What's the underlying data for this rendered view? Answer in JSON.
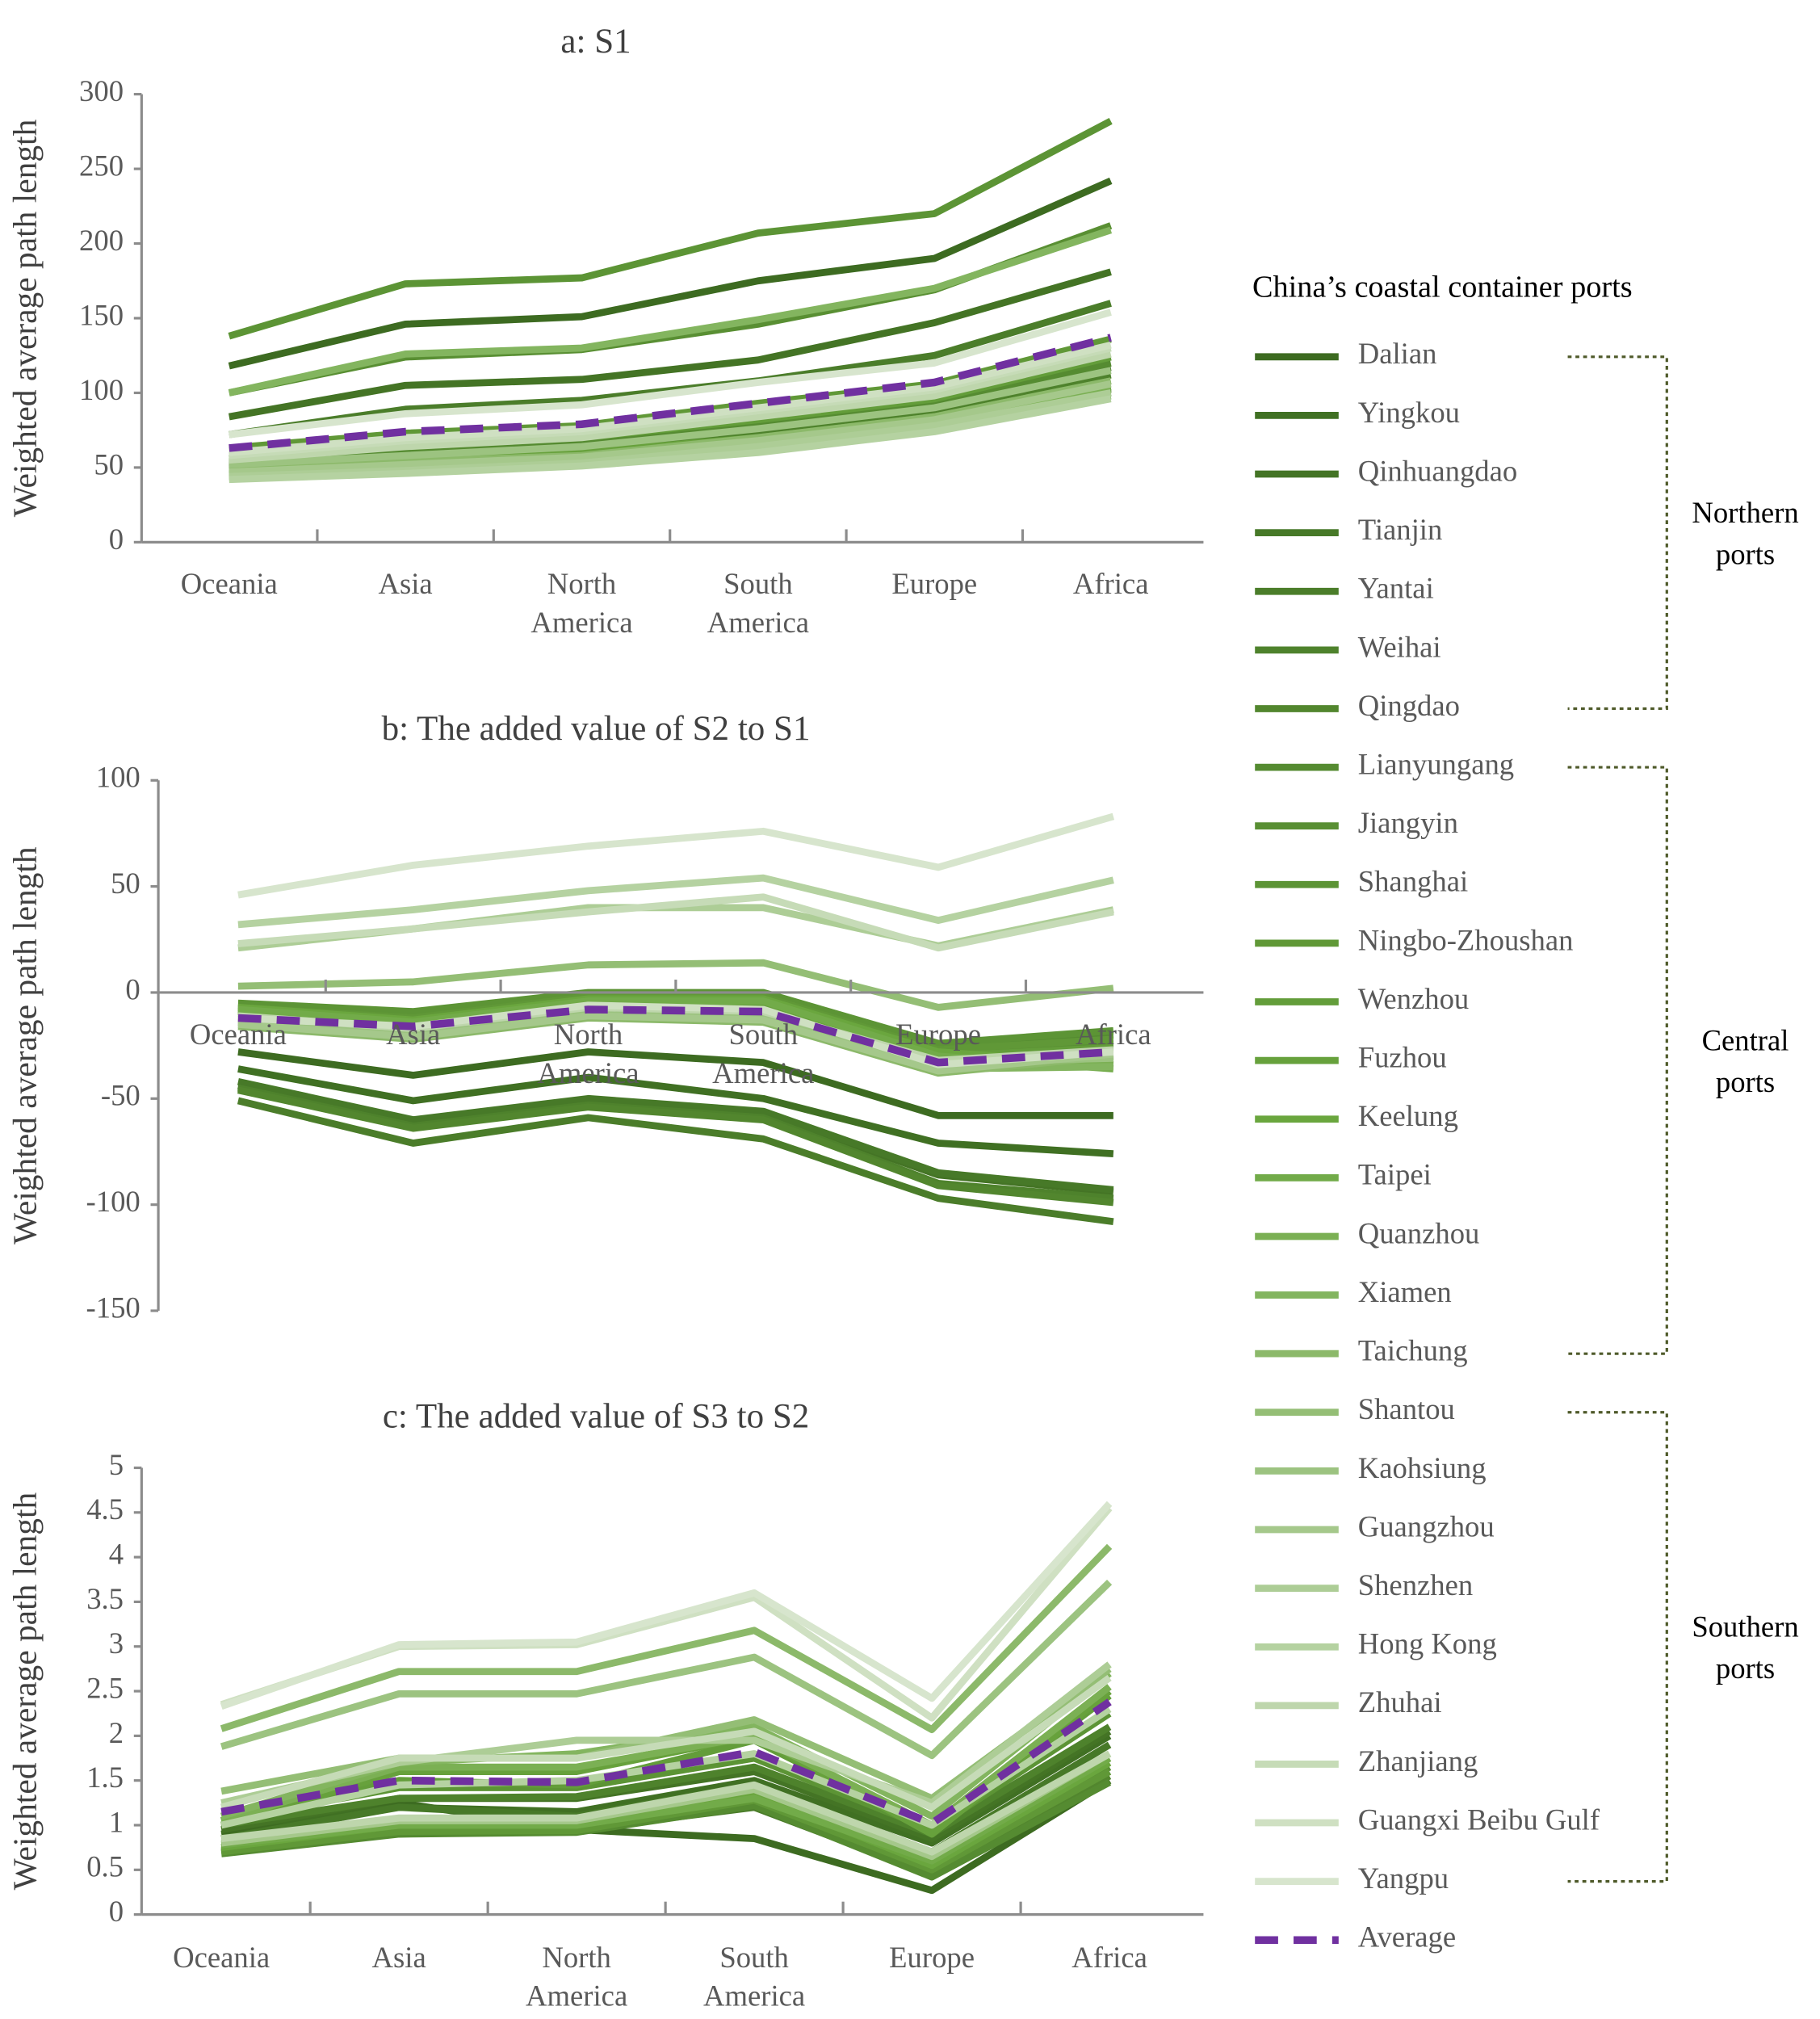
{
  "legend": {
    "title": "China’s coastal container ports",
    "groups": [
      {
        "label_lines": [
          "Northern",
          "ports"
        ],
        "from": 0,
        "to": 6
      },
      {
        "label_lines": [
          "Central",
          "ports"
        ],
        "from": 7,
        "to": 17
      },
      {
        "label_lines": [
          "Southern",
          "ports"
        ],
        "from": 18,
        "to": 26
      }
    ],
    "color_stops": [
      "#3d6b21",
      "#6aa63e",
      "#d7e5cd"
    ],
    "average_color": "#7030a0",
    "bracket_color": "#4f5a2a"
  },
  "chart_data": [
    {
      "type": "line",
      "title": "a: S1",
      "ylabel": "Weighted average path length",
      "xlabel": "",
      "categories": [
        "Oceania",
        "Asia",
        "North America",
        "South America",
        "Europe",
        "Africa"
      ],
      "category_lines": [
        [
          "Oceania"
        ],
        [
          "Asia"
        ],
        [
          "North",
          "America"
        ],
        [
          "South",
          "America"
        ],
        [
          "Europe"
        ],
        [
          "Africa"
        ]
      ],
      "ylim": [
        0,
        300
      ],
      "yticks": [
        0,
        50,
        100,
        150,
        200,
        250,
        300
      ],
      "grid": false,
      "series": [
        {
          "name": "Dalian",
          "values": [
            118,
            146,
            151,
            175,
            190,
            242
          ]
        },
        {
          "name": "Yingkou",
          "values": [
            52,
            60,
            66,
            78,
            92,
            117
          ]
        },
        {
          "name": "Qinhuangdao",
          "values": [
            84,
            105,
            109,
            122,
            147,
            181
          ]
        },
        {
          "name": "Tianjin",
          "values": [
            48,
            52,
            56,
            67,
            80,
            103
          ]
        },
        {
          "name": "Yantai",
          "values": [
            72,
            89,
            95,
            108,
            125,
            160
          ]
        },
        {
          "name": "Weihai",
          "values": [
            50,
            56,
            62,
            74,
            88,
            112
          ]
        },
        {
          "name": "Qingdao",
          "values": [
            46,
            50,
            55,
            66,
            78,
            100
          ]
        },
        {
          "name": "Lianyungang",
          "values": [
            54,
            62,
            68,
            80,
            94,
            120
          ]
        },
        {
          "name": "Jiangyin",
          "values": [
            100,
            124,
            129,
            146,
            169,
            212
          ]
        },
        {
          "name": "Shanghai",
          "values": [
            138,
            173,
            177,
            207,
            220,
            282
          ]
        },
        {
          "name": "Ningbo-Zhoushan",
          "values": [
            63,
            73,
            78,
            93,
            106,
            136
          ]
        },
        {
          "name": "Wenzhou",
          "values": [
            56,
            64,
            70,
            82,
            96,
            124
          ]
        },
        {
          "name": "Fuzhou",
          "values": [
            48,
            54,
            60,
            70,
            84,
            108
          ]
        },
        {
          "name": "Keelung",
          "values": [
            46,
            50,
            56,
            66,
            80,
            104
          ]
        },
        {
          "name": "Taipei",
          "values": [
            44,
            48,
            54,
            64,
            78,
            100
          ]
        },
        {
          "name": "Quanzhou",
          "values": [
            45,
            50,
            55,
            65,
            79,
            102
          ]
        },
        {
          "name": "Xiamen",
          "values": [
            100,
            126,
            130,
            149,
            170,
            209
          ]
        },
        {
          "name": "Taichung",
          "values": [
            48,
            54,
            58,
            70,
            84,
            108
          ]
        },
        {
          "name": "Shantou",
          "values": [
            44,
            47,
            52,
            62,
            76,
            98
          ]
        },
        {
          "name": "Kaohsiung",
          "values": [
            52,
            58,
            64,
            76,
            90,
            115
          ]
        },
        {
          "name": "Guangzhou",
          "values": [
            47,
            52,
            57,
            68,
            82,
            106
          ]
        },
        {
          "name": "Shenzhen",
          "values": [
            44,
            48,
            53,
            64,
            78,
            100
          ]
        },
        {
          "name": "Hong Kong",
          "values": [
            42,
            46,
            51,
            60,
            74,
            96
          ]
        },
        {
          "name": "Zhuhai",
          "values": [
            55,
            64,
            70,
            84,
            98,
            126
          ]
        },
        {
          "name": "Zhanjiang",
          "values": [
            58,
            68,
            74,
            88,
            102,
            130
          ]
        },
        {
          "name": "Guangxi Beibu Gulf",
          "values": [
            60,
            70,
            76,
            90,
            104,
            132
          ]
        },
        {
          "name": "Yangpu",
          "values": [
            72,
            86,
            92,
            107,
            120,
            154
          ]
        },
        {
          "name": "Average",
          "values": [
            63,
            74,
            79,
            93,
            107,
            137
          ]
        }
      ]
    },
    {
      "type": "line",
      "title": "b: The added value of S2 to S1",
      "ylabel": "Weighted average path length",
      "xlabel": "",
      "categories": [
        "Oceania",
        "Asia",
        "North America",
        "South America",
        "Europe",
        "Africa"
      ],
      "category_lines": [
        [
          "Oceania"
        ],
        [
          "Asia"
        ],
        [
          "North",
          "America"
        ],
        [
          "South",
          "America"
        ],
        [
          "Europe"
        ],
        [
          "Africa"
        ]
      ],
      "ylim": [
        -150,
        100
      ],
      "yticks": [
        -150,
        -100,
        -50,
        0,
        50,
        100
      ],
      "grid": false,
      "series": [
        {
          "name": "Dalian",
          "values": [
            -28,
            -39,
            -28,
            -33,
            -58,
            -58
          ]
        },
        {
          "name": "Yingkou",
          "values": [
            -36,
            -51,
            -40,
            -50,
            -71,
            -76
          ]
        },
        {
          "name": "Qinhuangdao",
          "values": [
            -44,
            -61,
            -51,
            -57,
            -86,
            -94
          ]
        },
        {
          "name": "Tianjin",
          "values": [
            -42,
            -60,
            -50,
            -56,
            -85,
            -93
          ]
        },
        {
          "name": "Yantai",
          "values": [
            -51,
            -71,
            -59,
            -69,
            -97,
            -108
          ]
        },
        {
          "name": "Weihai",
          "values": [
            -45,
            -63,
            -53,
            -59,
            -90,
            -97
          ]
        },
        {
          "name": "Qingdao",
          "values": [
            -46,
            -64,
            -54,
            -60,
            -91,
            -99
          ]
        },
        {
          "name": "Lianyungang",
          "values": [
            -6,
            -11,
            -1,
            -1,
            -25,
            -20
          ]
        },
        {
          "name": "Jiangyin",
          "values": [
            -8,
            -13,
            -3,
            -4,
            -28,
            -24
          ]
        },
        {
          "name": "Shanghai",
          "values": [
            -5,
            -9,
            0,
            0,
            -24,
            -18
          ]
        },
        {
          "name": "Ningbo-Zhoushan",
          "values": [
            -7,
            -12,
            -2,
            -2,
            -27,
            -22
          ]
        },
        {
          "name": "Wenzhou",
          "values": [
            -9,
            -14,
            -4,
            -5,
            -30,
            -26
          ]
        },
        {
          "name": "Fuzhou",
          "values": [
            -10,
            -15,
            -5,
            -6,
            -31,
            -28
          ]
        },
        {
          "name": "Keelung",
          "values": [
            -7,
            -13,
            -3,
            -3,
            -28,
            -34
          ]
        },
        {
          "name": "Taipei",
          "values": [
            -8,
            -14,
            -4,
            -4,
            -30,
            -36
          ]
        },
        {
          "name": "Quanzhou",
          "values": [
            -12,
            -18,
            -8,
            -10,
            -34,
            -33
          ]
        },
        {
          "name": "Xiamen",
          "values": [
            -14,
            -20,
            -10,
            -12,
            -36,
            -35
          ]
        },
        {
          "name": "Taichung",
          "values": [
            -16,
            -22,
            -12,
            -14,
            -38,
            -30
          ]
        },
        {
          "name": "Shantou",
          "values": [
            3,
            5,
            13,
            14,
            -7,
            2
          ]
        },
        {
          "name": "Kaohsiung",
          "values": [
            -13,
            -19,
            -9,
            -11,
            -33,
            -31
          ]
        },
        {
          "name": "Guangzhou",
          "values": [
            -15,
            -21,
            -11,
            -13,
            -37,
            -29
          ]
        },
        {
          "name": "Shenzhen",
          "values": [
            21,
            30,
            40,
            40,
            22,
            39
          ]
        },
        {
          "name": "Hong Kong",
          "values": [
            32,
            39,
            48,
            54,
            34,
            53
          ]
        },
        {
          "name": "Zhuhai",
          "values": [
            -11,
            -17,
            -7,
            -9,
            -32,
            -27
          ]
        },
        {
          "name": "Zhanjiang",
          "values": [
            23,
            30,
            38,
            45,
            21,
            38
          ]
        },
        {
          "name": "Guangxi Beibu Gulf",
          "values": [
            -12,
            -16,
            -6,
            -8,
            -34,
            -28
          ]
        },
        {
          "name": "Yangpu",
          "values": [
            46,
            60,
            69,
            76,
            59,
            83
          ]
        },
        {
          "name": "Average",
          "values": [
            -12,
            -16,
            -8,
            -9,
            -33,
            -28
          ]
        }
      ]
    },
    {
      "type": "line",
      "title": "c: The added value of S3 to S2",
      "ylabel": "Weighted average path length",
      "xlabel": "",
      "categories": [
        "Oceania",
        "Asia",
        "North America",
        "South America",
        "Europe",
        "Africa"
      ],
      "category_lines": [
        [
          "Oceania"
        ],
        [
          "Asia"
        ],
        [
          "North",
          "America"
        ],
        [
          "South",
          "America"
        ],
        [
          "Europe"
        ],
        [
          "Africa"
        ]
      ],
      "ylim": [
        0,
        5
      ],
      "yticks": [
        0,
        0.5,
        1,
        1.5,
        2,
        2.5,
        3,
        3.5,
        4,
        4.5,
        5
      ],
      "grid": false,
      "series": [
        {
          "name": "Dalian",
          "values": [
            0.9,
            1.25,
            0.95,
            0.85,
            0.27,
            1.5
          ]
        },
        {
          "name": "Yingkou",
          "values": [
            0.98,
            1.2,
            1.15,
            1.5,
            0.8,
            2.0
          ]
        },
        {
          "name": "Qinhuangdao",
          "values": [
            0.95,
            1.3,
            1.3,
            1.6,
            0.85,
            2.05
          ]
        },
        {
          "name": "Tianjin",
          "values": [
            0.85,
            1.2,
            1.1,
            1.45,
            0.7,
            1.9
          ]
        },
        {
          "name": "Yantai",
          "values": [
            0.7,
            0.95,
            0.95,
            1.2,
            0.45,
            1.5
          ]
        },
        {
          "name": "Weihai",
          "values": [
            1.0,
            1.3,
            1.32,
            1.65,
            0.9,
            2.1
          ]
        },
        {
          "name": "Qingdao",
          "values": [
            0.75,
            0.92,
            0.93,
            1.25,
            0.5,
            1.55
          ]
        },
        {
          "name": "Lianyungang",
          "values": [
            0.68,
            0.9,
            0.92,
            1.22,
            0.42,
            1.48
          ]
        },
        {
          "name": "Jiangyin",
          "values": [
            0.72,
            0.95,
            0.95,
            1.3,
            0.55,
            1.65
          ]
        },
        {
          "name": "Shanghai",
          "values": [
            1.05,
            1.42,
            1.42,
            1.75,
            0.95,
            2.25
          ]
        },
        {
          "name": "Ningbo-Zhoushan",
          "values": [
            0.7,
            0.93,
            0.94,
            1.28,
            0.5,
            1.6
          ]
        },
        {
          "name": "Wenzhou",
          "values": [
            1.05,
            1.5,
            1.45,
            1.95,
            0.95,
            2.45
          ]
        },
        {
          "name": "Fuzhou",
          "values": [
            1.0,
            1.6,
            1.6,
            2.0,
            0.9,
            2.5
          ]
        },
        {
          "name": "Keelung",
          "values": [
            0.75,
            1.0,
            1.0,
            1.35,
            0.55,
            1.7
          ]
        },
        {
          "name": "Taipei",
          "values": [
            0.78,
            1.0,
            1.0,
            1.3,
            0.6,
            1.75
          ]
        },
        {
          "name": "Quanzhou",
          "values": [
            1.05,
            1.65,
            1.65,
            2.0,
            1.0,
            2.55
          ]
        },
        {
          "name": "Xiamen",
          "values": [
            1.1,
            1.7,
            1.8,
            2.1,
            1.1,
            2.7
          ]
        },
        {
          "name": "Taichung",
          "values": [
            2.08,
            2.72,
            2.72,
            3.18,
            2.07,
            4.12
          ]
        },
        {
          "name": "Shantou",
          "values": [
            1.38,
            1.75,
            1.75,
            2.18,
            1.3,
            2.75
          ]
        },
        {
          "name": "Kaohsiung",
          "values": [
            1.88,
            2.47,
            2.47,
            2.88,
            1.78,
            3.72
          ]
        },
        {
          "name": "Guangzhou",
          "values": [
            0.8,
            1.05,
            1.05,
            1.4,
            0.65,
            1.8
          ]
        },
        {
          "name": "Shenzhen",
          "values": [
            1.25,
            1.7,
            1.95,
            1.95,
            1.25,
            2.8
          ]
        },
        {
          "name": "Hong Kong",
          "values": [
            1.0,
            1.45,
            1.5,
            1.8,
            1.0,
            2.3
          ]
        },
        {
          "name": "Zhuhai",
          "values": [
            0.85,
            1.08,
            1.08,
            1.45,
            0.7,
            1.8
          ]
        },
        {
          "name": "Zhanjiang",
          "values": [
            1.2,
            1.75,
            1.75,
            2.05,
            1.2,
            2.65
          ]
        },
        {
          "name": "Guangxi Beibu Gulf",
          "values": [
            2.35,
            3.0,
            3.02,
            3.55,
            2.2,
            4.55
          ]
        },
        {
          "name": "Yangpu",
          "values": [
            2.33,
            3.02,
            3.05,
            3.6,
            2.42,
            4.6
          ]
        },
        {
          "name": "Average",
          "values": [
            1.15,
            1.5,
            1.48,
            1.82,
            1.02,
            2.38
          ]
        }
      ]
    }
  ]
}
